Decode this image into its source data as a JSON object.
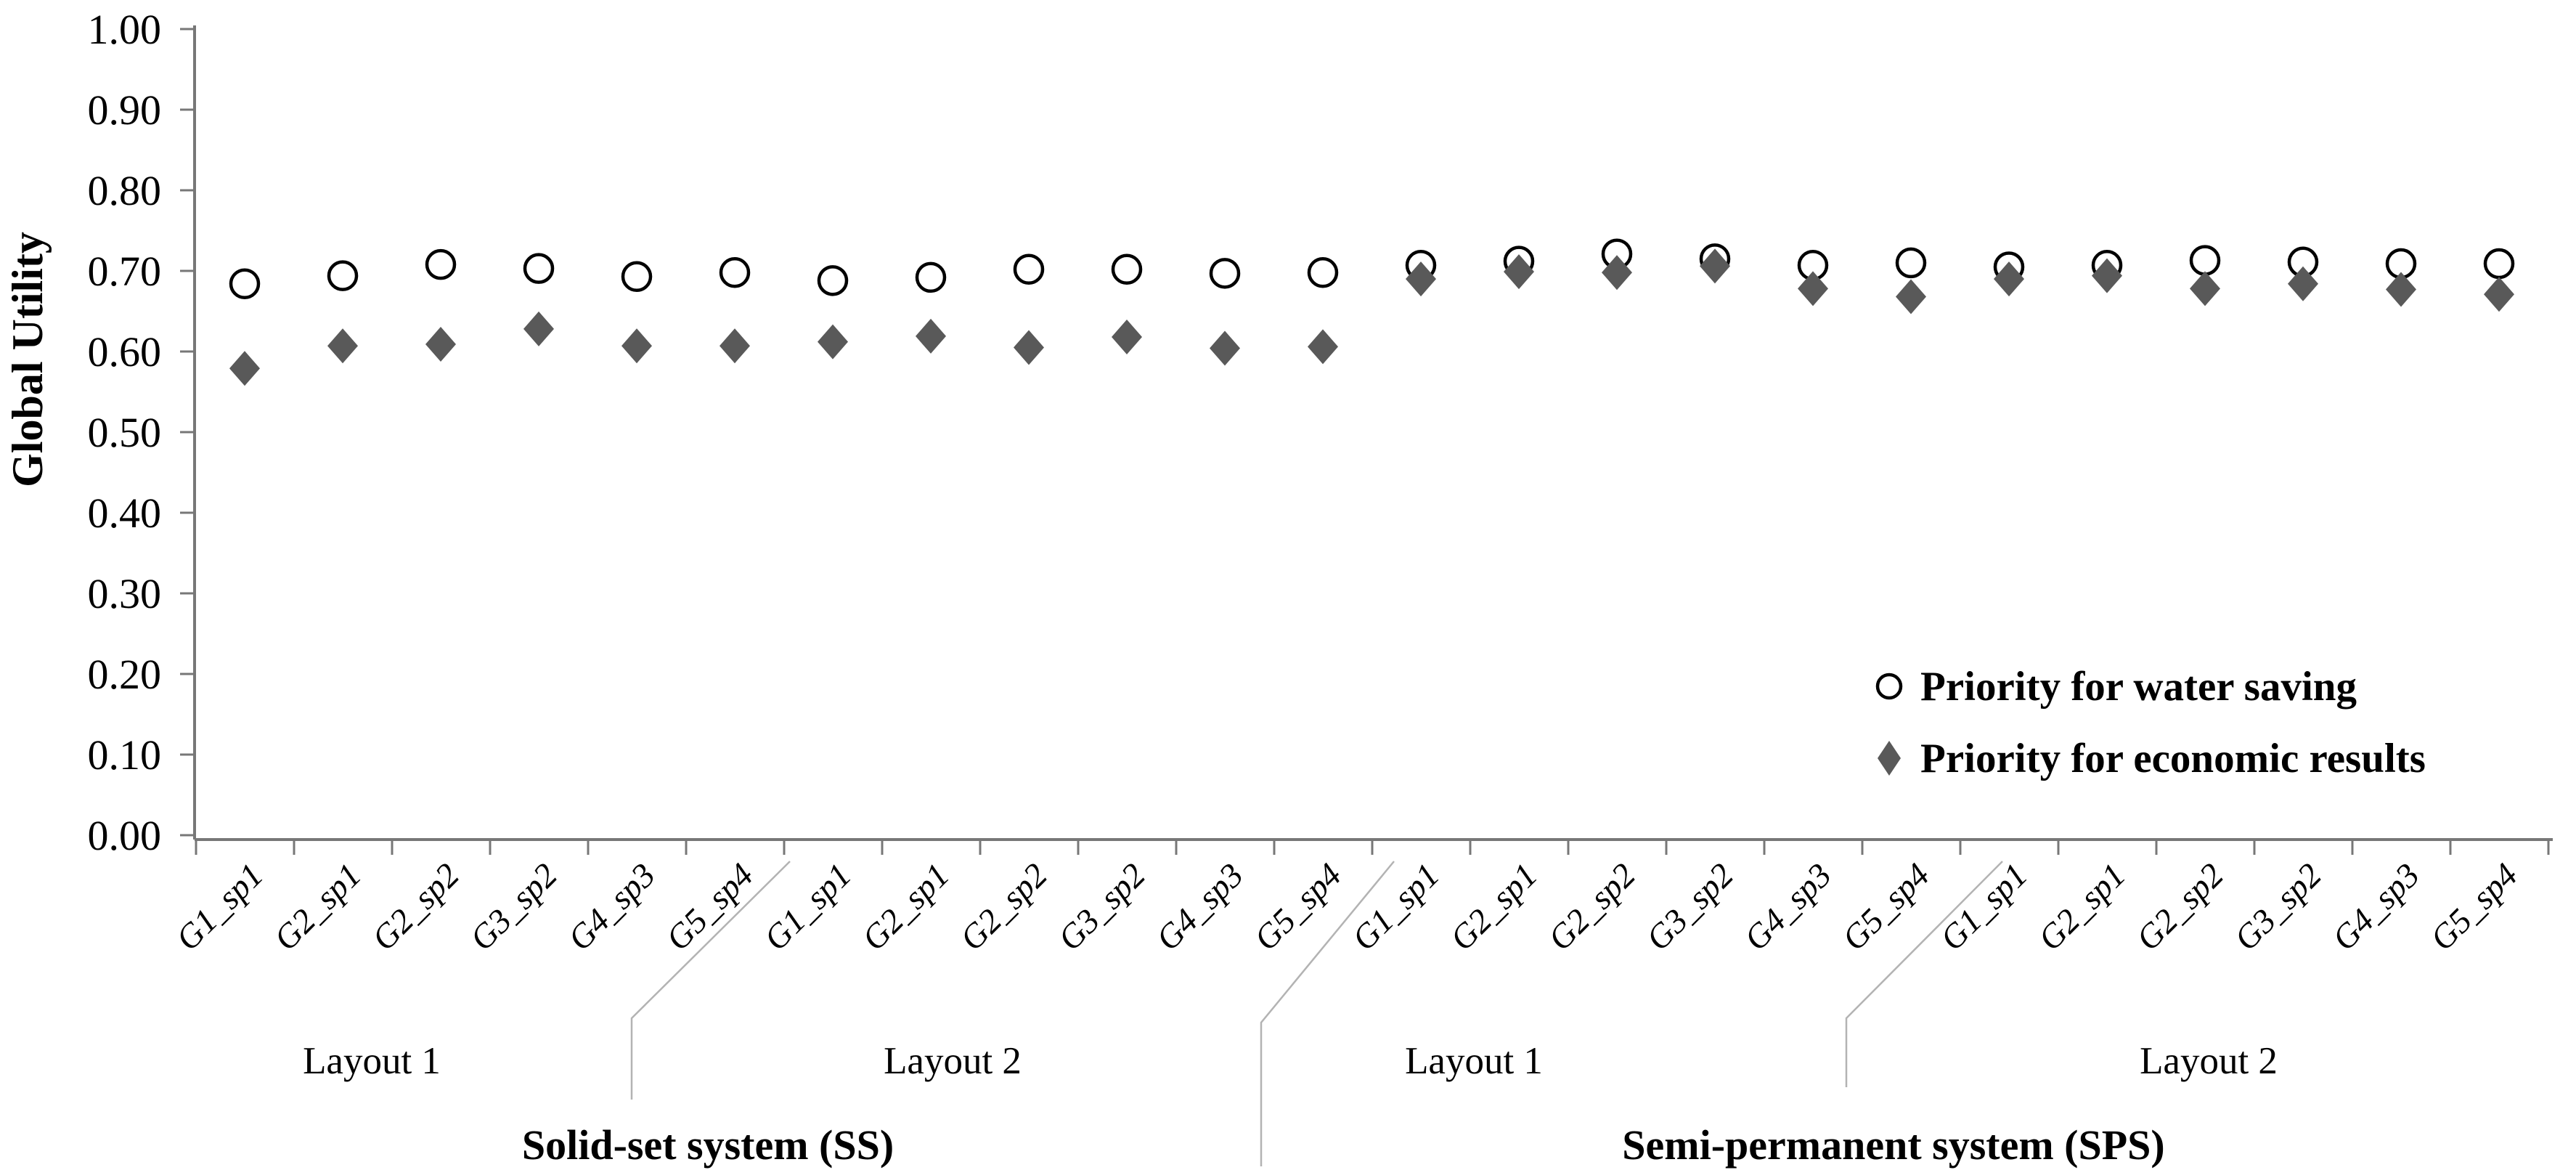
{
  "chart_data": {
    "type": "scatter",
    "title": "",
    "xlabel": "",
    "ylabel": "Global Utility",
    "ylim": [
      0.0,
      1.0
    ],
    "ytick_labels": [
      "0.00",
      "0.10",
      "0.20",
      "0.30",
      "0.40",
      "0.50",
      "0.60",
      "0.70",
      "0.80",
      "0.90",
      "1.00"
    ],
    "grid": false,
    "legend_position": "inside-right",
    "categories": [
      "G1_sp1",
      "G2_sp1",
      "G2_sp2",
      "G3_sp2",
      "G4_sp3",
      "G5_sp4",
      "G1_sp1",
      "G2_sp1",
      "G2_sp2",
      "G3_sp2",
      "G4_sp3",
      "G5_sp4",
      "G1_sp1",
      "G2_sp1",
      "G2_sp2",
      "G3_sp2",
      "G4_sp3",
      "G5_sp4",
      "G1_sp1",
      "G2_sp1",
      "G2_sp2",
      "G3_sp2",
      "G4_sp3",
      "G5_sp4"
    ],
    "categories_per_group": 6,
    "layout_group_labels": [
      {
        "label": "Layout 1"
      },
      {
        "label": "Layout 2"
      },
      {
        "label": "Layout 1"
      },
      {
        "label": "Layout 2"
      }
    ],
    "system_labels": [
      {
        "label": "Solid-set system (SS)"
      },
      {
        "label": "Semi-permanent system (SPS)"
      }
    ],
    "series": [
      {
        "name": "Priority for water saving",
        "marker": "circle",
        "stroke": "#000000",
        "fill": "#ffffff",
        "values": [
          0.684,
          0.694,
          0.708,
          0.703,
          0.693,
          0.698,
          0.688,
          0.692,
          0.702,
          0.702,
          0.697,
          0.698,
          0.707,
          0.712,
          0.721,
          0.715,
          0.707,
          0.71,
          0.705,
          0.707,
          0.713,
          0.711,
          0.709,
          0.709
        ]
      },
      {
        "name": "Priority for economic results",
        "marker": "diamond",
        "stroke": "#595959",
        "fill": "#595959",
        "values": [
          0.579,
          0.607,
          0.609,
          0.628,
          0.607,
          0.607,
          0.612,
          0.619,
          0.605,
          0.618,
          0.604,
          0.606,
          0.69,
          0.699,
          0.698,
          0.706,
          0.678,
          0.668,
          0.69,
          0.694,
          0.678,
          0.684,
          0.677,
          0.671
        ]
      }
    ]
  },
  "colors": {
    "axis": "#777777",
    "separator": "#b3b3b3",
    "text": "#000000",
    "diamond": "#595959",
    "background": "#ffffff"
  }
}
